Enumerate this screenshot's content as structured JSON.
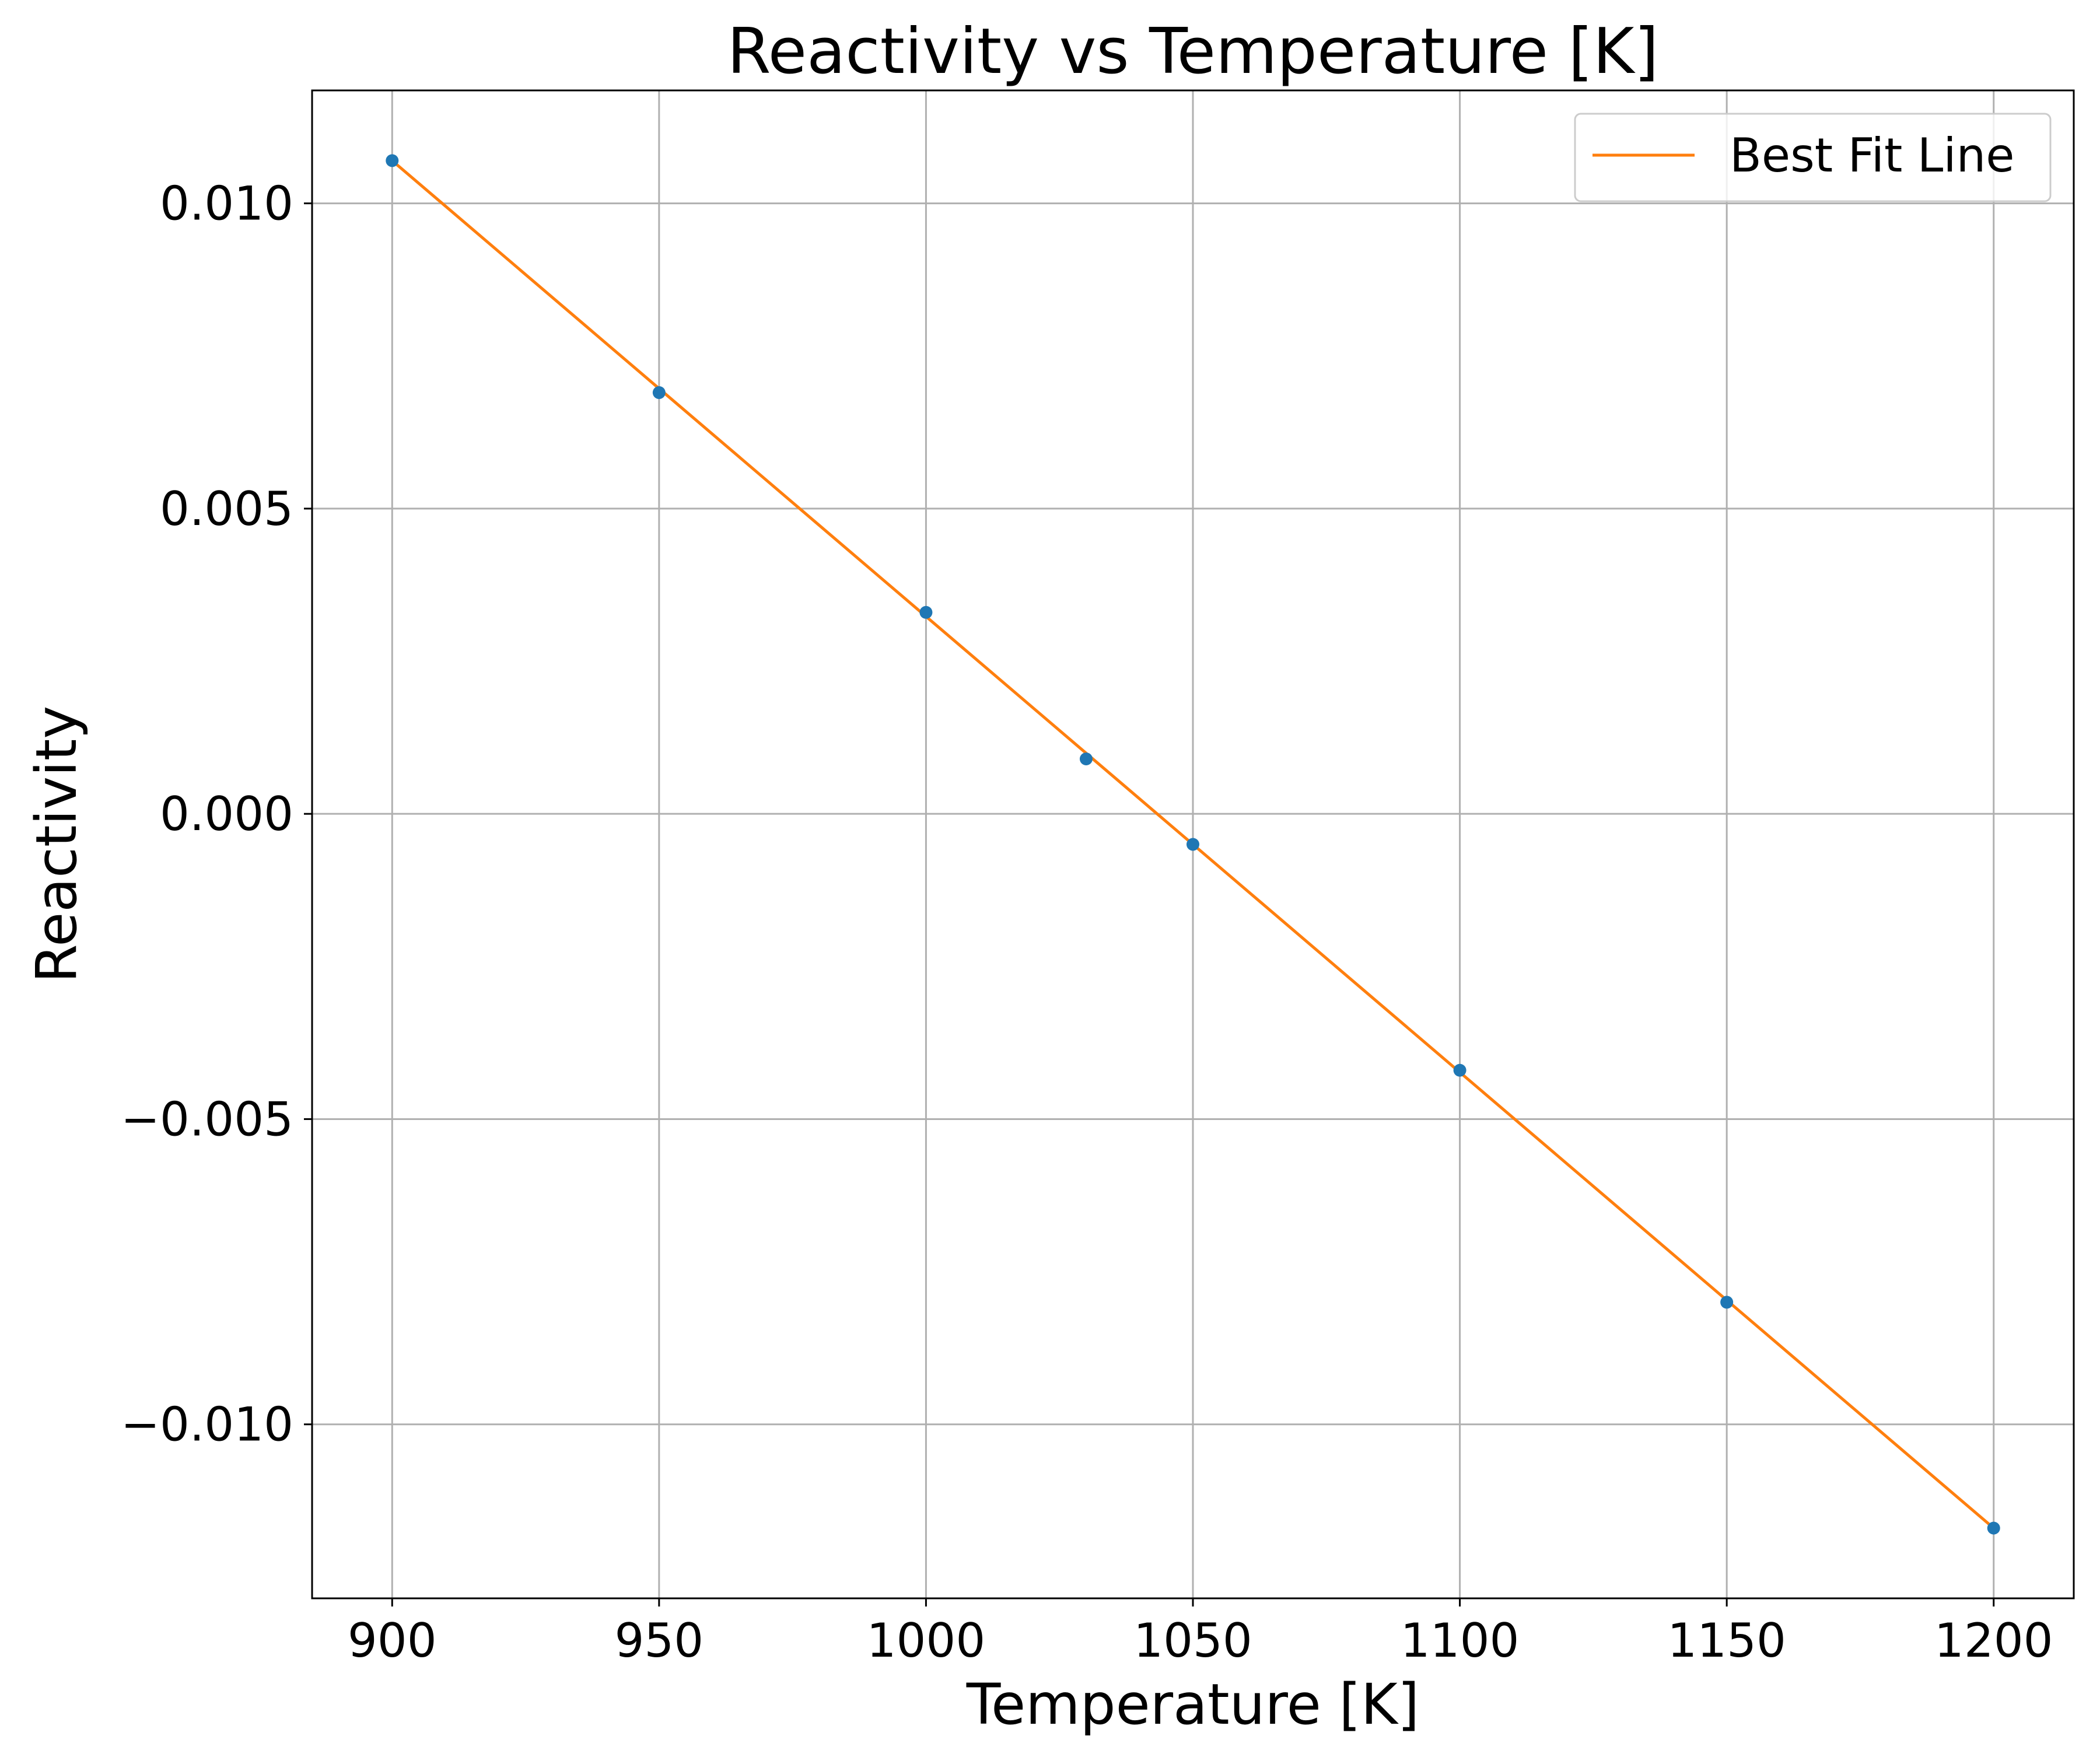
{
  "chart_data": {
    "type": "scatter",
    "title": "Reactivity vs Temperature [K]",
    "xlabel": "Temperature [K]",
    "ylabel": "Reactivity",
    "xlim": [
      885,
      1215
    ],
    "ylim": [
      -0.01285,
      0.01185
    ],
    "x_ticks": [
      900,
      950,
      1000,
      1050,
      1100,
      1150,
      1200
    ],
    "x_tick_labels": [
      "900",
      "950",
      "1000",
      "1050",
      "1100",
      "1150",
      "1200"
    ],
    "y_ticks": [
      0.01,
      0.005,
      0.0,
      -0.005,
      -0.01
    ],
    "y_tick_labels": [
      "0.010",
      "0.005",
      "0.000",
      "−0.005",
      "−0.010"
    ],
    "grid": true,
    "legend_position": "top-right",
    "series": [
      {
        "type": "scatter",
        "color": "#1f77b4",
        "points": [
          {
            "x": 900,
            "y": 0.0107
          },
          {
            "x": 950,
            "y": 0.0069
          },
          {
            "x": 1000,
            "y": 0.0033
          },
          {
            "x": 1030,
            "y": 0.0009
          },
          {
            "x": 1050,
            "y": -0.0005
          },
          {
            "x": 1100,
            "y": -0.0042
          },
          {
            "x": 1150,
            "y": -0.008
          },
          {
            "x": 1200,
            "y": -0.0117
          }
        ]
      },
      {
        "type": "line",
        "name": "Best Fit Line",
        "color": "#ff7f0e",
        "points": [
          {
            "x": 900,
            "y": 0.0107
          },
          {
            "x": 1200,
            "y": -0.0117
          }
        ]
      }
    ]
  }
}
